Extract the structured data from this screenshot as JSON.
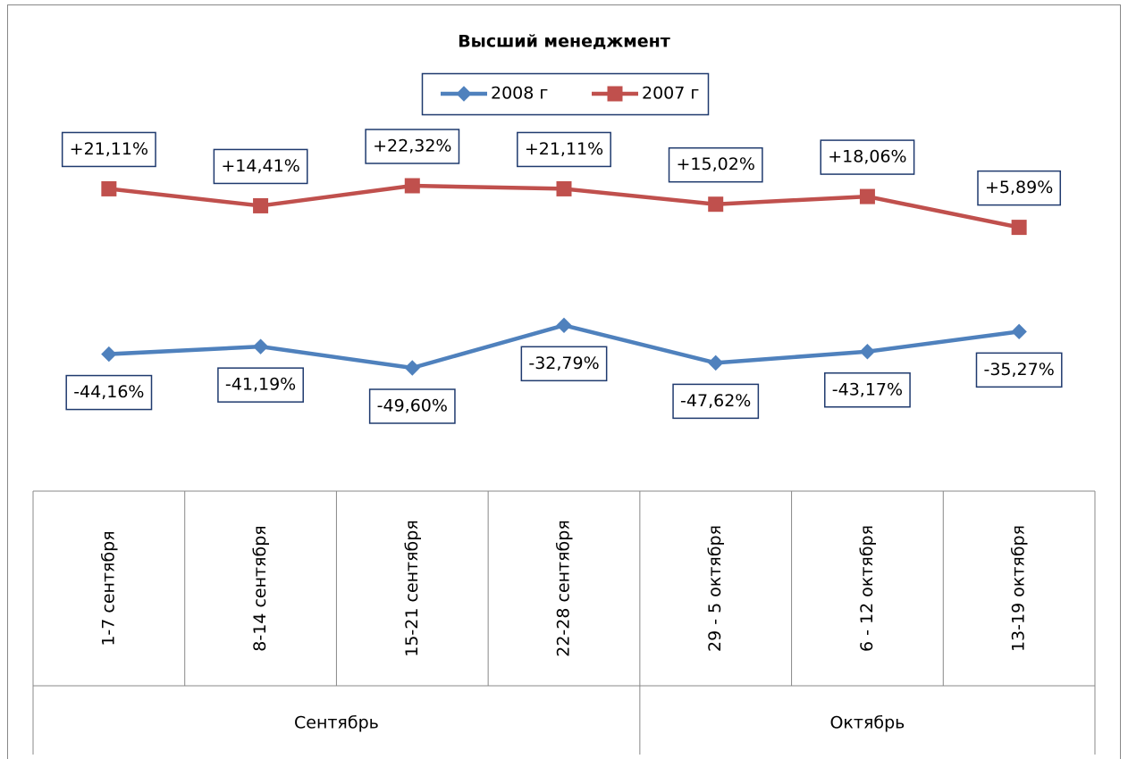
{
  "chart_data": {
    "type": "line",
    "title": "Высший менеджмент",
    "categories": [
      "1-7 сентября",
      "8-14 сентября",
      "15-21 сентября",
      "22-28 сентября",
      "29 - 5 октября",
      "6 - 12 октября",
      "13-19 октября"
    ],
    "category_groups": [
      {
        "label": "Сентябрь",
        "count": 4
      },
      {
        "label": "Октябрь",
        "count": 3
      }
    ],
    "series": [
      {
        "name": "2008 г",
        "color": "#4f81bd",
        "marker": "diamond",
        "values": [
          -44.16,
          -41.19,
          -49.6,
          -32.79,
          -47.62,
          -43.17,
          -35.27
        ],
        "value_labels": [
          "-44,16%",
          "-41,19%",
          "-49,60%",
          "-32,79%",
          "-47,62%",
          "-43,17%",
          "-35,27%"
        ],
        "label_position": "below"
      },
      {
        "name": "2007 г",
        "color": "#c0504d",
        "marker": "square",
        "values": [
          21.11,
          14.41,
          22.32,
          21.11,
          15.02,
          18.06,
          5.89
        ],
        "value_labels": [
          "+21,11%",
          "+14,41%",
          "+22,32%",
          "+21,11%",
          "+15,02%",
          "+18,06%",
          "+5,89%"
        ],
        "label_position": "above"
      }
    ],
    "legend": "top"
  }
}
